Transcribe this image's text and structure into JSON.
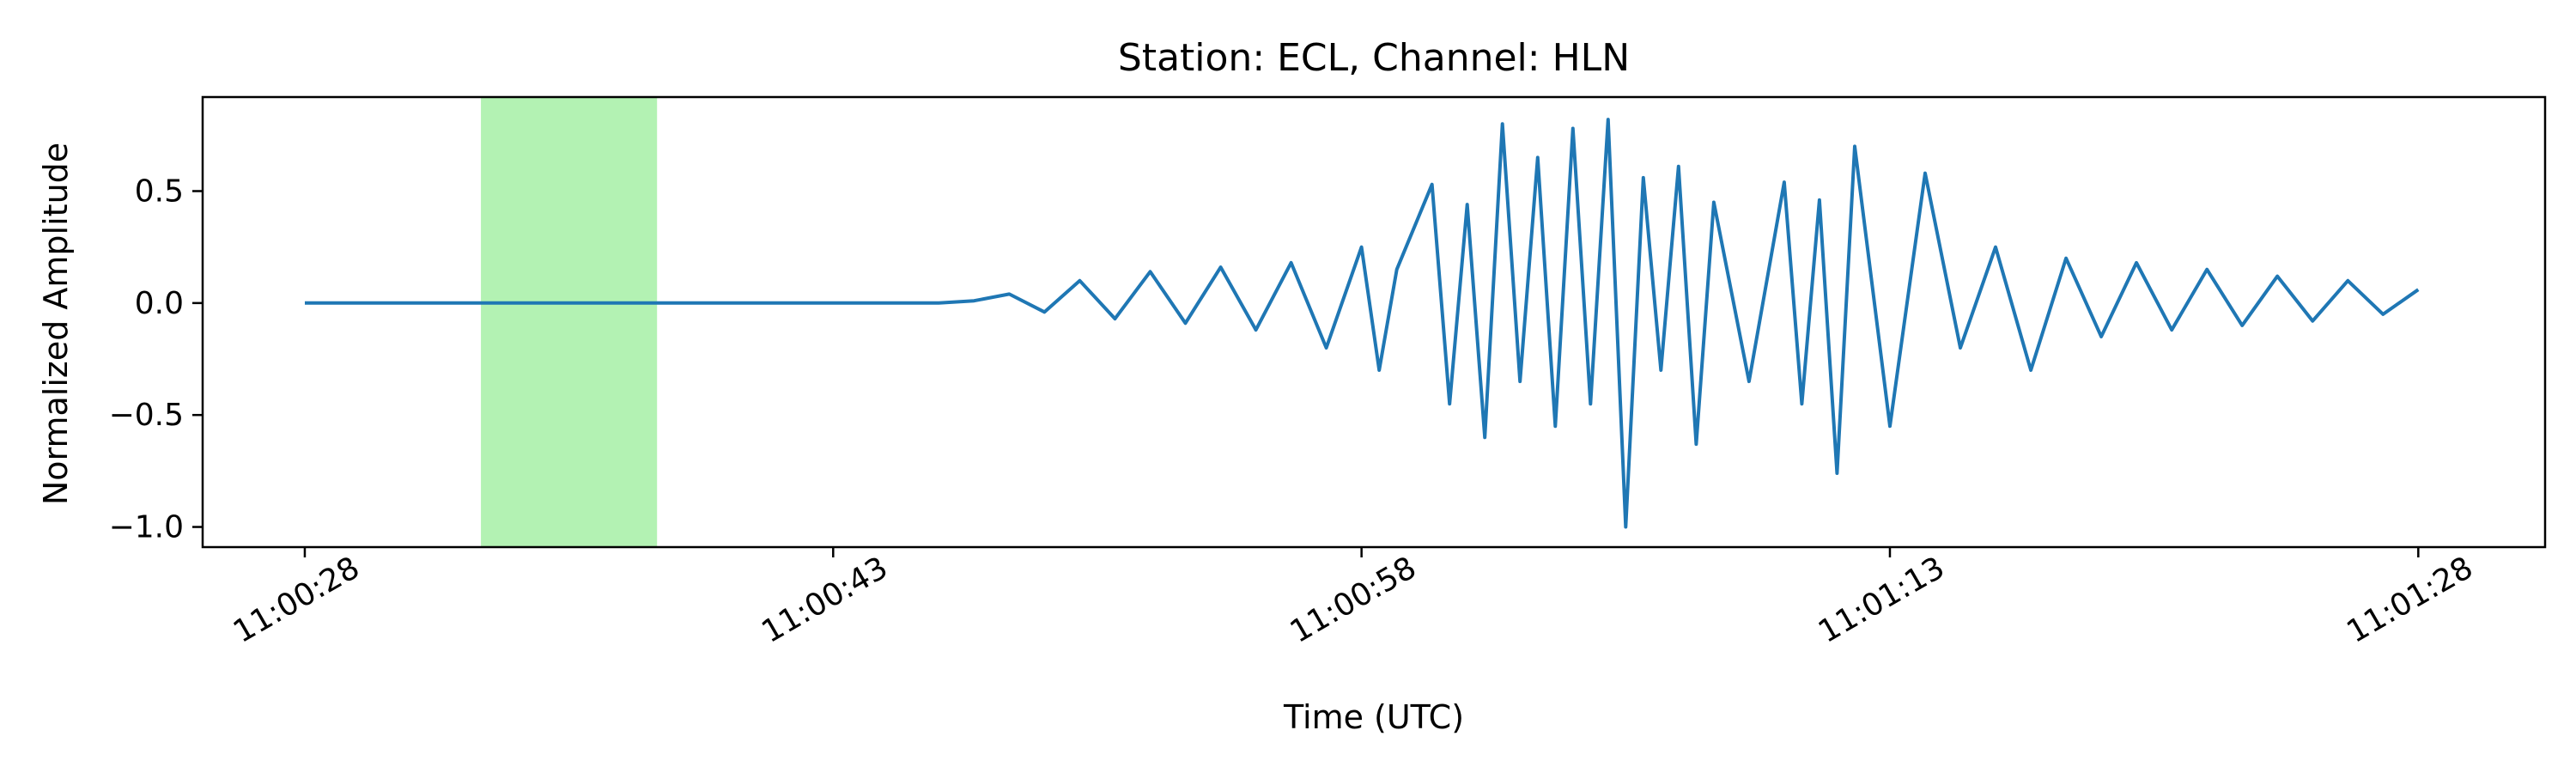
{
  "chart_data": {
    "type": "line",
    "title": "Station: ECL, Channel: HLN",
    "xlabel": "Time (UTC)",
    "ylabel": "Normalized Amplitude",
    "x_tick_labels": [
      "11:00:28",
      "11:00:43",
      "11:00:58",
      "11:01:13",
      "11:01:28"
    ],
    "x_tick_seconds": [
      0,
      15,
      30,
      45,
      60
    ],
    "y_ticks": [
      -1.0,
      -0.5,
      0.0,
      0.5
    ],
    "y_tick_labels": [
      "−1.0",
      "−0.5",
      "0.0",
      "0.5"
    ],
    "xlim_seconds": [
      -2.9,
      63.6
    ],
    "ylim": [
      -1.09,
      0.92
    ],
    "grid": false,
    "highlight_window": {
      "start_seconds": 5.0,
      "end_seconds": 10.0,
      "color": "#b3f2b3"
    },
    "series": [
      {
        "color": "#1f77b4",
        "x_seconds": [
          0,
          5,
          10,
          15,
          17,
          18,
          19,
          20,
          21,
          22,
          23,
          24,
          25,
          26,
          27,
          28,
          29,
          30,
          30.5,
          31,
          32,
          32.5,
          33,
          33.5,
          34,
          34.5,
          35,
          35.5,
          36,
          36.5,
          37,
          37.5,
          38,
          38.5,
          39,
          39.5,
          40,
          41,
          42,
          42.5,
          43,
          43.5,
          44,
          45,
          46,
          47,
          48,
          49,
          50,
          51,
          52,
          53,
          54,
          55,
          56,
          57,
          58,
          59,
          60
        ],
        "values": [
          0.0,
          0.0,
          0.0,
          0.0,
          0.0,
          0.0,
          0.01,
          0.04,
          -0.04,
          0.1,
          -0.07,
          0.14,
          -0.09,
          0.16,
          -0.12,
          0.18,
          -0.2,
          0.25,
          -0.3,
          0.15,
          0.53,
          -0.45,
          0.44,
          -0.6,
          0.8,
          -0.35,
          0.65,
          -0.55,
          0.78,
          -0.45,
          0.82,
          -1.0,
          0.56,
          -0.3,
          0.61,
          -0.63,
          0.45,
          -0.35,
          0.54,
          -0.45,
          0.46,
          -0.76,
          0.7,
          -0.55,
          0.58,
          -0.2,
          0.25,
          -0.3,
          0.2,
          -0.15,
          0.18,
          -0.12,
          0.15,
          -0.1,
          0.12,
          -0.08,
          0.1,
          -0.05,
          0.06
        ]
      }
    ]
  }
}
